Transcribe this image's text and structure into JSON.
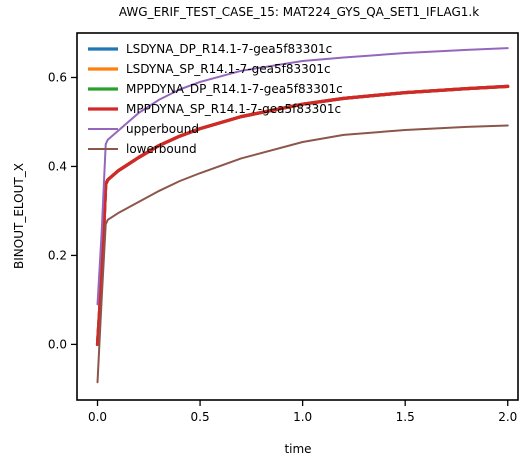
{
  "chart_data": {
    "type": "line",
    "title": "AWG_ERIF_TEST_CASE_15: MAT224_GYS_QA_SET1_IFLAG1.k",
    "xlabel": "time",
    "ylabel": "BINOUT_ELOUT_X",
    "xlim": [
      -0.1,
      2.05
    ],
    "ylim": [
      -0.125,
      0.7
    ],
    "xticks": [
      0.0,
      0.5,
      1.0,
      1.5,
      2.0
    ],
    "yticks": [
      0.0,
      0.2,
      0.4,
      0.6
    ],
    "xtick_labels": [
      "0.0",
      "0.5",
      "1.0",
      "1.5",
      "2.0"
    ],
    "ytick_labels": [
      "0.0",
      "0.2",
      "0.4",
      "0.6"
    ],
    "grid": false,
    "legend_position": "top-left",
    "series": [
      {
        "name": "LSDYNA_DP_R14.1-7-gea5f83301c",
        "color": "#1f77b4",
        "x": [
          0.0,
          0.02,
          0.04,
          0.05,
          0.1,
          0.2,
          0.3,
          0.4,
          0.5,
          0.7,
          1.0,
          1.2,
          1.5,
          1.8,
          2.0
        ],
        "y": [
          0.0,
          0.15,
          0.36,
          0.37,
          0.39,
          0.42,
          0.447,
          0.468,
          0.485,
          0.512,
          0.54,
          0.553,
          0.566,
          0.575,
          0.58
        ]
      },
      {
        "name": "LSDYNA_SP_R14.1-7-gea5f83301c",
        "color": "#ff7f0e",
        "x": [
          0.0,
          0.02,
          0.04,
          0.05,
          0.1,
          0.2,
          0.3,
          0.4,
          0.5,
          0.7,
          1.0,
          1.2,
          1.5,
          1.8,
          2.0
        ],
        "y": [
          0.0,
          0.15,
          0.36,
          0.37,
          0.39,
          0.42,
          0.447,
          0.468,
          0.485,
          0.512,
          0.54,
          0.553,
          0.566,
          0.575,
          0.58
        ]
      },
      {
        "name": "MPPDYNA_DP_R14.1-7-gea5f83301c",
        "color": "#2ca02c",
        "x": [
          0.0,
          0.02,
          0.04,
          0.05,
          0.1,
          0.2,
          0.3,
          0.4,
          0.5,
          0.7,
          1.0,
          1.2,
          1.5,
          1.8,
          2.0
        ],
        "y": [
          0.0,
          0.15,
          0.36,
          0.37,
          0.39,
          0.42,
          0.447,
          0.468,
          0.485,
          0.512,
          0.54,
          0.553,
          0.566,
          0.575,
          0.58
        ]
      },
      {
        "name": "MPPDYNA_SP_R14.1-7-gea5f83301c",
        "color": "#d62728",
        "x": [
          0.0,
          0.02,
          0.04,
          0.05,
          0.1,
          0.2,
          0.3,
          0.4,
          0.5,
          0.7,
          1.0,
          1.2,
          1.5,
          1.8,
          2.0
        ],
        "y": [
          0.0,
          0.15,
          0.36,
          0.37,
          0.39,
          0.42,
          0.447,
          0.468,
          0.485,
          0.512,
          0.54,
          0.553,
          0.566,
          0.575,
          0.58
        ]
      },
      {
        "name": "upperbound",
        "color": "#9467bd",
        "x": [
          0.0,
          0.02,
          0.04,
          0.05,
          0.1,
          0.2,
          0.3,
          0.4,
          0.5,
          0.7,
          1.0,
          1.2,
          1.5,
          1.8,
          2.0
        ],
        "y": [
          0.09,
          0.25,
          0.45,
          0.46,
          0.48,
          0.52,
          0.55,
          0.573,
          0.59,
          0.615,
          0.637,
          0.645,
          0.655,
          0.662,
          0.666
        ]
      },
      {
        "name": "lowerbound",
        "color": "#8c564b",
        "x": [
          0.0,
          0.02,
          0.04,
          0.05,
          0.1,
          0.2,
          0.3,
          0.4,
          0.5,
          0.7,
          1.0,
          1.2,
          1.5,
          1.8,
          2.0
        ],
        "y": [
          -0.085,
          0.1,
          0.27,
          0.28,
          0.295,
          0.32,
          0.345,
          0.367,
          0.385,
          0.418,
          0.455,
          0.471,
          0.482,
          0.489,
          0.492
        ]
      }
    ]
  }
}
